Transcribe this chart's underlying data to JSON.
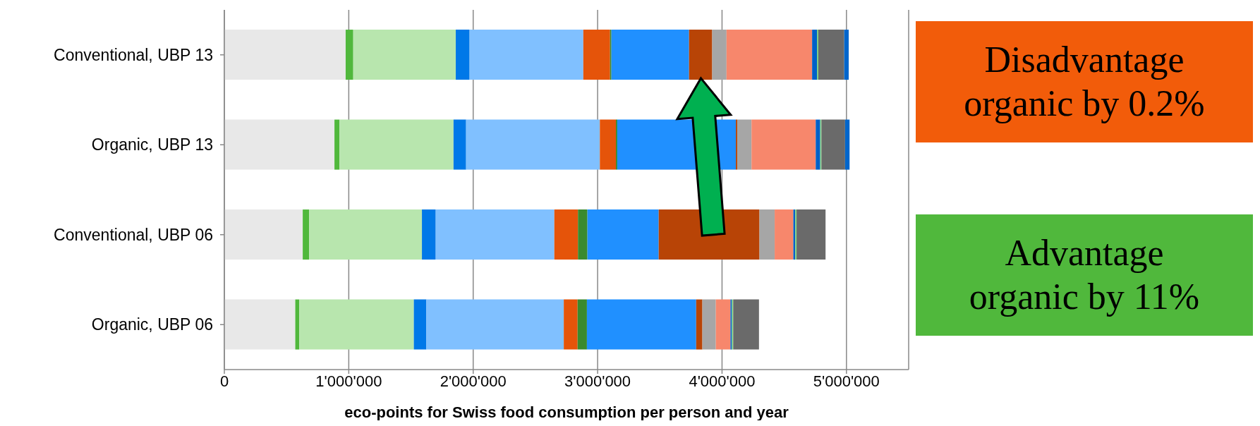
{
  "chart_data": {
    "type": "bar",
    "orientation": "horizontal",
    "stacked": true,
    "xlabel": "eco-points for Swiss food consumption per person and year",
    "categories": [
      "Conventional, UBP 13",
      "Organic, UBP 13",
      "Conventional, UBP 06",
      "Organic, UBP 06"
    ],
    "xlim": [
      0,
      5500000
    ],
    "xticks": [
      0,
      {
        "value": 1000000,
        "label": "1'000'000"
      },
      {
        "value": 2000000,
        "label": "2'000'000"
      },
      {
        "value": 3000000,
        "label": "3'000'000"
      },
      {
        "value": 4000000,
        "label": "4'000'000"
      },
      {
        "value": 5000000,
        "label": "5'000'000"
      }
    ],
    "grid": "x",
    "series": [
      {
        "color": "#e8e8e8",
        "values": [
          975000,
          885000,
          630000,
          570000
        ]
      },
      {
        "color": "#50b83c",
        "values": [
          61000,
          40000,
          51000,
          32000
        ]
      },
      {
        "color": "#b8e6ae",
        "values": [
          824000,
          917000,
          907000,
          921000
        ]
      },
      {
        "color": "#0078e8",
        "values": [
          111000,
          101000,
          111000,
          101000
        ]
      },
      {
        "color": "#80c0ff",
        "values": [
          914000,
          1075000,
          953000,
          1104000
        ]
      },
      {
        "color": "#e5540a",
        "values": [
          215000,
          129000,
          190000,
          111000
        ]
      },
      {
        "color": "#3a8a2e",
        "values": [
          11000,
          11000,
          76000,
          75000
        ]
      },
      {
        "color": "#2090ff",
        "values": [
          624000,
          953000,
          573000,
          878000
        ]
      },
      {
        "color": "#b84406",
        "values": [
          186000,
          11000,
          810000,
          50000
        ]
      },
      {
        "color": "#a6a6a6",
        "values": [
          115000,
          115000,
          122000,
          108000
        ]
      },
      {
        "color": "#f7876c",
        "values": [
          688000,
          516000,
          150000,
          118000
        ]
      },
      {
        "color": "#0060c8",
        "values": [
          39000,
          36000,
          15000,
          11000
        ]
      },
      {
        "color": "#80d080",
        "values": [
          11000,
          10000,
          11000,
          11000
        ]
      },
      {
        "color": "#6a6a6a",
        "values": [
          208000,
          190000,
          233000,
          207000
        ]
      },
      {
        "color": "#0066cc",
        "values": [
          36000,
          36000,
          null,
          null
        ]
      }
    ],
    "annotations": [
      "Disadvantage organic by 0.2%",
      "Advantage organic by 11%"
    ]
  }
}
